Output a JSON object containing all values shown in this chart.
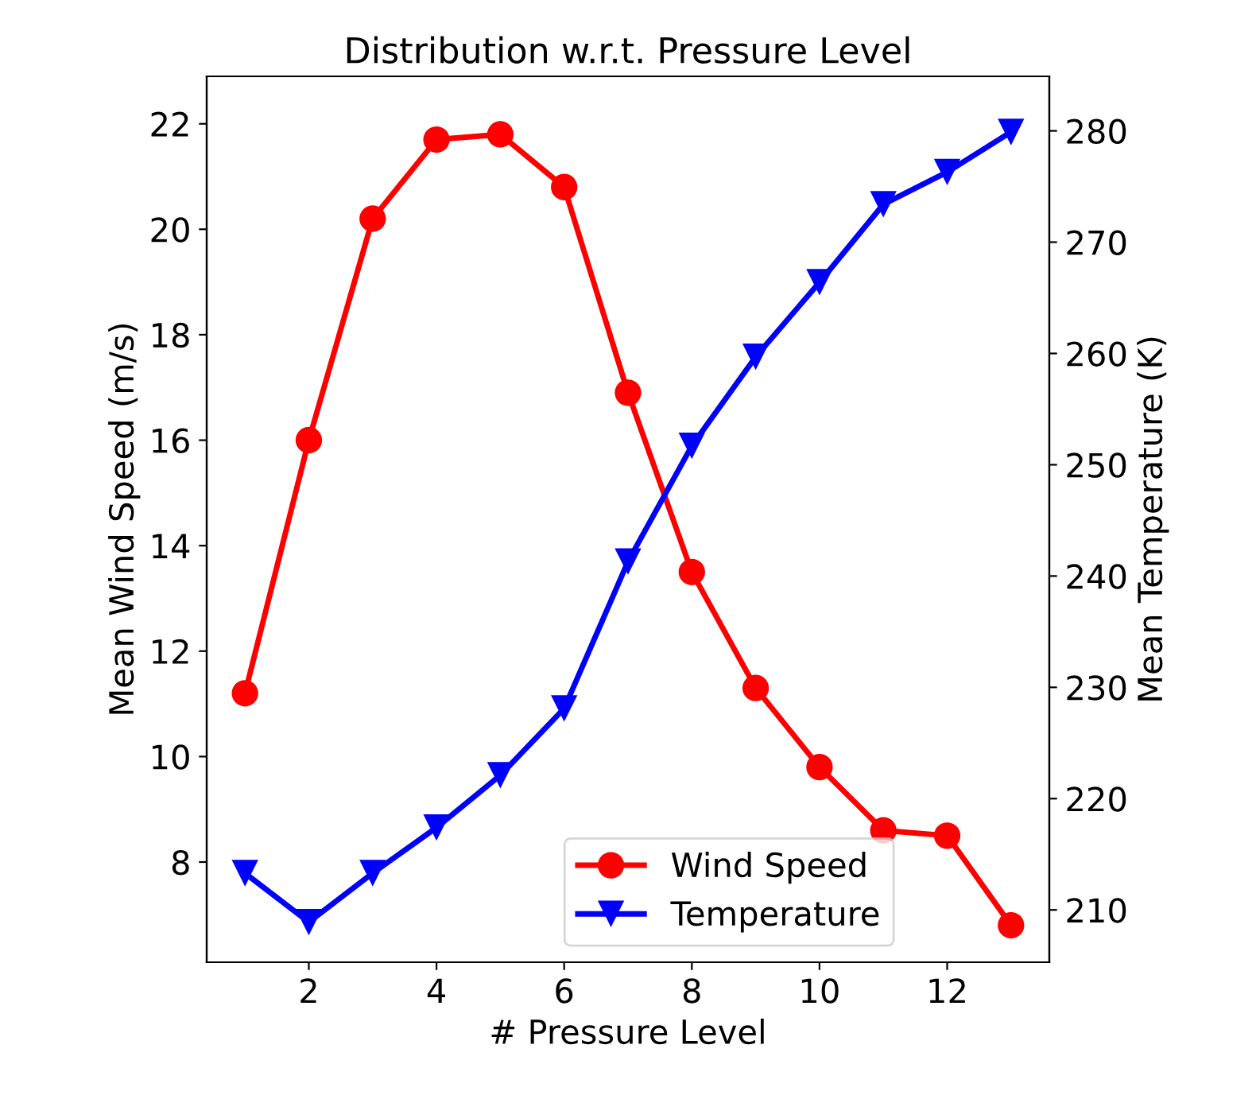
{
  "chart_data": {
    "type": "line",
    "title": "Distribution w.r.t. Pressure Level",
    "xlabel": "# Pressure Level",
    "ylabel": "Mean Wind Speed (m/s)",
    "y2label": "Mean Temperature (K)",
    "x": [
      1,
      2,
      3,
      4,
      5,
      6,
      7,
      8,
      9,
      10,
      11,
      12,
      13
    ],
    "series": [
      {
        "name": "Wind Speed",
        "color": "#ff0000",
        "marker": "circle",
        "values": [
          11.2,
          16.0,
          20.2,
          21.7,
          21.8,
          20.8,
          16.9,
          13.5,
          11.3,
          9.8,
          8.6,
          8.5,
          6.8
        ]
      },
      {
        "name": "Temperature",
        "color": "#0000ff",
        "marker": "triangle",
        "axis": "y2",
        "values": [
          213.3,
          208.9,
          213.3,
          217.4,
          222.1,
          228.1,
          241.3,
          251.7,
          259.7,
          266.4,
          273.4,
          276.3,
          279.9
        ]
      }
    ],
    "xlim": [
      0.4,
      13.6
    ],
    "xticks": [
      2,
      4,
      6,
      8,
      10,
      12
    ],
    "ylim": [
      6.1,
      22.9
    ],
    "yticks": [
      8,
      10,
      12,
      14,
      16,
      18,
      20,
      22
    ],
    "y2lim": [
      205.3,
      284.9
    ],
    "y2ticks": [
      210,
      220,
      230,
      240,
      250,
      260,
      270,
      280
    ],
    "legend": "bottom",
    "grid": false,
    "line_style": "solid"
  }
}
